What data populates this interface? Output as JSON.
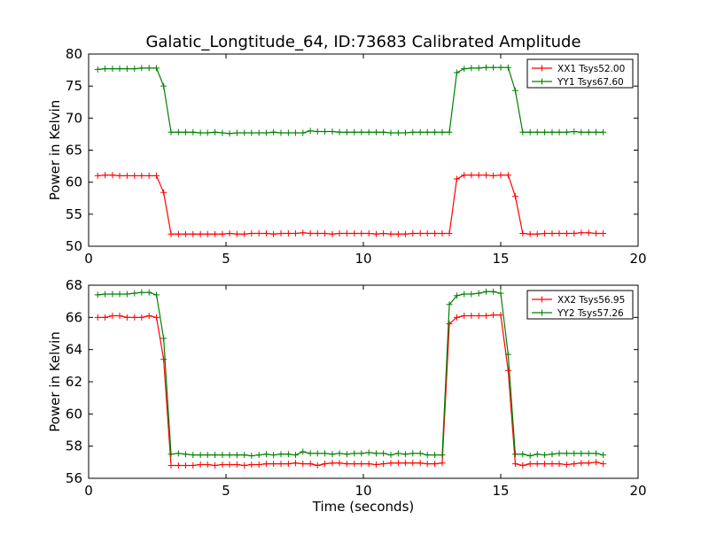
{
  "figure": {
    "title": "Galatic_Longtitude_64, ID:73683 Calibrated Amplitude"
  },
  "chart_data": [
    {
      "type": "line",
      "title": "Galatic_Longtitude_64, ID:73683 Calibrated Amplitude",
      "xlabel": "",
      "ylabel": "Power in Kelvin",
      "xlim": [
        0,
        20
      ],
      "ylim": [
        50,
        80
      ],
      "xticks": [
        0,
        5,
        10,
        15,
        20
      ],
      "yticks": [
        50,
        55,
        60,
        65,
        70,
        75,
        80
      ],
      "grid": false,
      "legend_position": "top-right",
      "x": [
        0.33,
        0.6,
        0.87,
        1.13,
        1.4,
        1.67,
        1.93,
        2.2,
        2.47,
        2.73,
        3.0,
        3.27,
        3.53,
        3.8,
        4.07,
        4.33,
        4.6,
        4.87,
        5.13,
        5.4,
        5.67,
        5.93,
        6.2,
        6.47,
        6.73,
        7.0,
        7.27,
        7.53,
        7.8,
        8.07,
        8.33,
        8.6,
        8.87,
        9.13,
        9.4,
        9.67,
        9.93,
        10.2,
        10.47,
        10.73,
        11.0,
        11.27,
        11.53,
        11.8,
        12.07,
        12.33,
        12.6,
        12.87,
        13.13,
        13.4,
        13.67,
        13.93,
        14.2,
        14.47,
        14.73,
        15.0,
        15.27,
        15.53,
        15.8,
        16.07,
        16.33,
        16.6,
        16.87,
        17.13,
        17.4,
        17.67,
        17.93,
        18.2,
        18.47,
        18.73
      ],
      "series": [
        {
          "name": "XX1 Tsys52.00",
          "color": "#ff0000",
          "values": [
            61.0,
            61.1,
            61.1,
            61.0,
            61.0,
            61.0,
            61.0,
            61.0,
            61.0,
            58.4,
            51.9,
            51.9,
            51.9,
            51.9,
            51.9,
            51.9,
            51.9,
            51.9,
            52.0,
            51.9,
            51.9,
            52.0,
            52.0,
            52.0,
            51.9,
            52.0,
            52.0,
            52.0,
            52.1,
            52.0,
            52.0,
            52.0,
            51.9,
            52.0,
            52.0,
            52.0,
            52.0,
            52.0,
            51.9,
            52.0,
            51.9,
            51.9,
            51.9,
            52.0,
            52.0,
            52.0,
            52.0,
            52.0,
            52.0,
            60.5,
            61.1,
            61.1,
            61.1,
            61.1,
            61.0,
            61.1,
            61.1,
            57.8,
            52.0,
            51.9,
            51.9,
            52.0,
            52.0,
            52.0,
            52.0,
            52.0,
            52.1,
            52.1,
            52.0,
            52.0
          ]
        },
        {
          "name": "YY1 Tsys67.60",
          "color": "#008000",
          "values": [
            77.6,
            77.7,
            77.7,
            77.7,
            77.7,
            77.7,
            77.8,
            77.8,
            77.8,
            75.0,
            67.8,
            67.8,
            67.8,
            67.8,
            67.7,
            67.7,
            67.8,
            67.7,
            67.6,
            67.7,
            67.7,
            67.7,
            67.7,
            67.7,
            67.8,
            67.7,
            67.7,
            67.7,
            67.7,
            68.0,
            67.9,
            67.9,
            67.9,
            67.8,
            67.8,
            67.8,
            67.8,
            67.8,
            67.8,
            67.8,
            67.7,
            67.7,
            67.7,
            67.8,
            67.8,
            67.8,
            67.8,
            67.8,
            67.8,
            77.1,
            77.7,
            77.8,
            77.8,
            77.9,
            77.9,
            77.9,
            77.9,
            74.3,
            67.8,
            67.8,
            67.8,
            67.8,
            67.8,
            67.8,
            67.8,
            67.9,
            67.8,
            67.8,
            67.8,
            67.8
          ]
        }
      ]
    },
    {
      "type": "line",
      "title": "",
      "xlabel": "Time (seconds)",
      "ylabel": "Power in Kelvin",
      "xlim": [
        0,
        20
      ],
      "ylim": [
        56,
        68
      ],
      "xticks": [
        0,
        5,
        10,
        15,
        20
      ],
      "yticks": [
        56,
        58,
        60,
        62,
        64,
        66,
        68
      ],
      "grid": false,
      "legend_position": "top-right",
      "x": [
        0.33,
        0.6,
        0.87,
        1.13,
        1.4,
        1.67,
        1.93,
        2.2,
        2.47,
        2.73,
        3.0,
        3.27,
        3.53,
        3.8,
        4.07,
        4.33,
        4.6,
        4.87,
        5.13,
        5.4,
        5.67,
        5.93,
        6.2,
        6.47,
        6.73,
        7.0,
        7.27,
        7.53,
        7.8,
        8.07,
        8.33,
        8.6,
        8.87,
        9.13,
        9.4,
        9.67,
        9.93,
        10.2,
        10.47,
        10.73,
        11.0,
        11.27,
        11.53,
        11.8,
        12.07,
        12.33,
        12.6,
        12.87,
        13.13,
        13.4,
        13.67,
        13.93,
        14.2,
        14.47,
        14.73,
        15.0,
        15.27,
        15.53,
        15.8,
        16.07,
        16.33,
        16.6,
        16.87,
        17.13,
        17.4,
        17.67,
        17.93,
        18.2,
        18.47,
        18.73
      ],
      "series": [
        {
          "name": "XX2 Tsys56.95",
          "color": "#ff0000",
          "values": [
            66.0,
            66.0,
            66.1,
            66.1,
            66.0,
            66.0,
            66.0,
            66.1,
            66.0,
            63.4,
            56.8,
            56.8,
            56.8,
            56.8,
            56.85,
            56.85,
            56.8,
            56.85,
            56.85,
            56.85,
            56.8,
            56.85,
            56.85,
            56.9,
            56.9,
            56.9,
            56.9,
            56.95,
            56.9,
            56.9,
            56.8,
            56.9,
            56.95,
            56.95,
            56.9,
            56.9,
            56.9,
            56.9,
            56.85,
            56.9,
            56.95,
            56.95,
            56.95,
            56.95,
            56.95,
            56.9,
            56.9,
            56.95,
            65.6,
            66.0,
            66.1,
            66.1,
            66.1,
            66.1,
            66.15,
            66.15,
            62.7,
            56.9,
            56.8,
            56.9,
            56.9,
            56.9,
            56.9,
            56.9,
            56.85,
            56.9,
            56.95,
            56.95,
            57.0,
            56.9
          ]
        },
        {
          "name": "YY2 Tsys57.26",
          "color": "#008000",
          "values": [
            67.4,
            67.45,
            67.45,
            67.45,
            67.45,
            67.5,
            67.55,
            67.55,
            67.4,
            64.7,
            57.5,
            57.55,
            57.5,
            57.45,
            57.45,
            57.45,
            57.45,
            57.45,
            57.45,
            57.45,
            57.45,
            57.4,
            57.45,
            57.5,
            57.45,
            57.5,
            57.5,
            57.45,
            57.65,
            57.55,
            57.55,
            57.55,
            57.5,
            57.55,
            57.5,
            57.55,
            57.55,
            57.6,
            57.55,
            57.55,
            57.45,
            57.55,
            57.5,
            57.55,
            57.55,
            57.45,
            57.45,
            57.45,
            66.8,
            67.35,
            67.45,
            67.45,
            67.5,
            67.6,
            67.6,
            67.5,
            63.7,
            57.5,
            57.5,
            57.4,
            57.5,
            57.45,
            57.5,
            57.55,
            57.55,
            57.55,
            57.55,
            57.55,
            57.55,
            57.45
          ]
        }
      ]
    }
  ]
}
